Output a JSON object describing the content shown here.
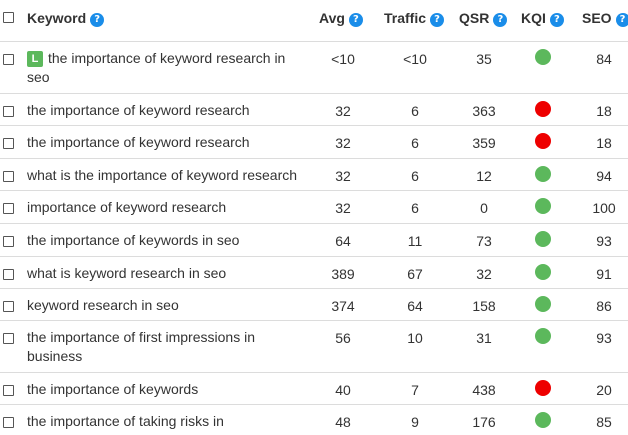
{
  "header": {
    "keyword": "Keyword",
    "avg": "Avg",
    "traffic": "Traffic",
    "qsr": "QSR",
    "kqi": "KQI",
    "seo": "SEO",
    "help_glyph": "?"
  },
  "colors": {
    "good": "#5cb85c",
    "bad": "#ee0000",
    "help": "#1a8de9"
  },
  "rows": [
    {
      "badge": "L",
      "keyword": "the importance of keyword research in seo",
      "avg": "<10",
      "traffic": "<10",
      "qsr": "35",
      "kqi": "good",
      "seo": "84"
    },
    {
      "keyword": "the importance of keyword research",
      "avg": "32",
      "traffic": "6",
      "qsr": "363",
      "kqi": "bad",
      "seo": "18"
    },
    {
      "keyword": "the importance of keyword research",
      "avg": "32",
      "traffic": "6",
      "qsr": "359",
      "kqi": "bad",
      "seo": "18"
    },
    {
      "keyword": "what is the importance of keyword research",
      "avg": "32",
      "traffic": "6",
      "qsr": "12",
      "kqi": "good",
      "seo": "94"
    },
    {
      "keyword": "importance of keyword research",
      "avg": "32",
      "traffic": "6",
      "qsr": "0",
      "kqi": "good",
      "seo": "100"
    },
    {
      "keyword": "the importance of keywords in seo",
      "avg": "64",
      "traffic": "11",
      "qsr": "73",
      "kqi": "good",
      "seo": "93"
    },
    {
      "keyword": "what is keyword research in seo",
      "avg": "389",
      "traffic": "67",
      "qsr": "32",
      "kqi": "good",
      "seo": "91"
    },
    {
      "keyword": "keyword research in seo",
      "avg": "374",
      "traffic": "64",
      "qsr": "158",
      "kqi": "good",
      "seo": "86"
    },
    {
      "keyword": "the importance of first impressions in business",
      "avg": "56",
      "traffic": "10",
      "qsr": "31",
      "kqi": "good",
      "seo": "93"
    },
    {
      "keyword": "the importance of keywords",
      "avg": "40",
      "traffic": "7",
      "qsr": "438",
      "kqi": "bad",
      "seo": "20"
    },
    {
      "keyword": "the importance of taking risks in",
      "avg": "48",
      "traffic": "9",
      "qsr": "176",
      "kqi": "good",
      "seo": "85"
    }
  ]
}
